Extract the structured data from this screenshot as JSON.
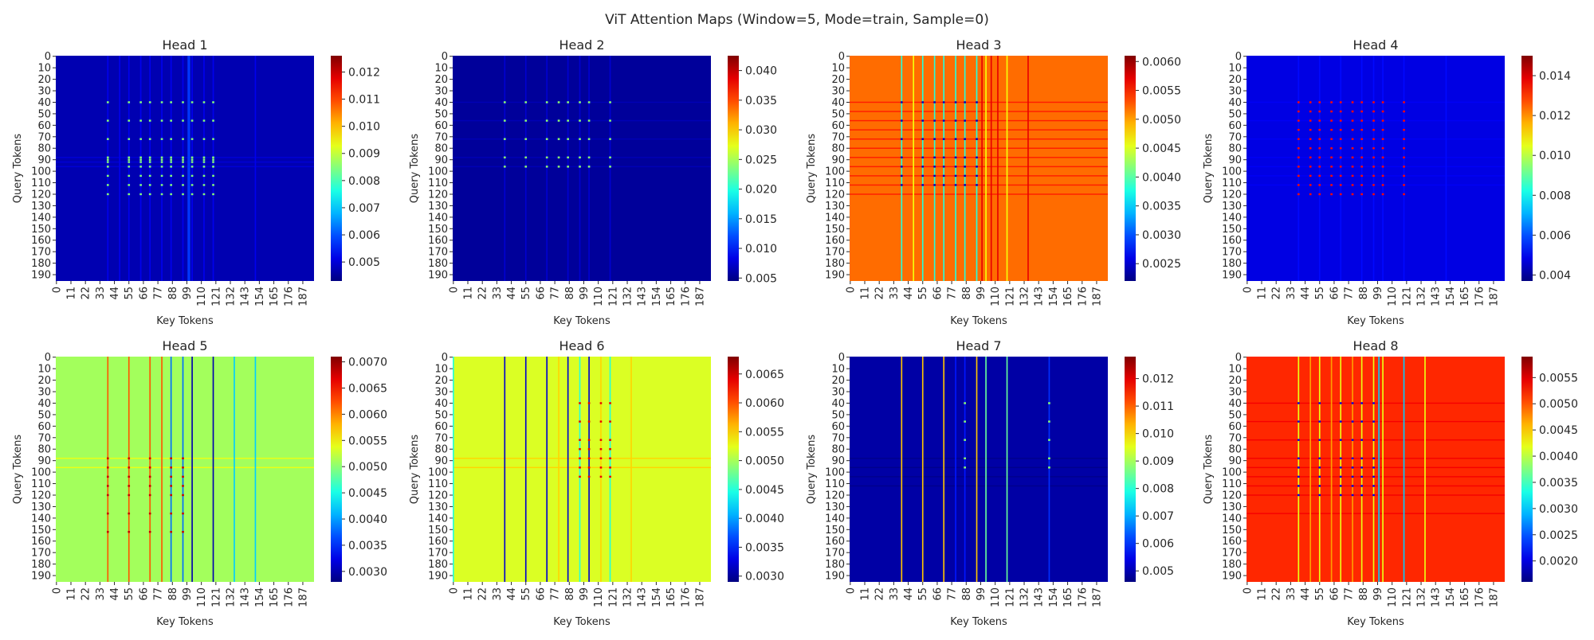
{
  "figure": {
    "suptitle": "ViT Attention Maps (Window=5, Mode=train, Sample=0)"
  },
  "chart_data": [
    {
      "type": "heatmap",
      "title": "Head 1",
      "xlabel": "Key Tokens",
      "ylabel": "Query Tokens",
      "n_tokens": 196,
      "colormap": "jet",
      "xticks": [
        0,
        11,
        22,
        33,
        44,
        55,
        66,
        77,
        88,
        99,
        110,
        121,
        132,
        143,
        154,
        165,
        176,
        187
      ],
      "yticks": [
        0,
        10,
        20,
        30,
        40,
        50,
        60,
        70,
        80,
        90,
        100,
        110,
        120,
        130,
        140,
        150,
        160,
        170,
        180,
        190
      ],
      "vmin": 0.0043,
      "vmax": 0.0126,
      "colorbar_ticks": [
        "0.005",
        "0.006",
        "0.007",
        "0.008",
        "0.009",
        "0.010",
        "0.011",
        "0.012"
      ],
      "background_value": 0.0047,
      "column_bands": [
        {
          "cols": [
            39,
            48,
            55,
            64,
            71,
            80,
            87,
            96,
            103,
            112,
            119
          ],
          "value": 0.0052
        },
        {
          "cols": [
            100,
            101
          ],
          "value": 0.0058
        },
        {
          "cols": [
            151
          ],
          "value": 0.0052
        }
      ],
      "row_bands": [
        {
          "rows": [
            88,
            92,
            96
          ],
          "value": 0.005
        }
      ],
      "hotspots": {
        "rows": [
          40,
          56,
          72,
          88,
          90,
          92,
          96,
          104,
          112,
          120
        ],
        "cols": [
          39,
          55,
          64,
          71,
          80,
          87,
          96,
          103,
          112,
          119
        ],
        "value": 0.0085
      }
    },
    {
      "type": "heatmap",
      "title": "Head 2",
      "xlabel": "Key Tokens",
      "ylabel": "Query Tokens",
      "n_tokens": 196,
      "colormap": "jet",
      "xticks": [
        0,
        11,
        22,
        33,
        44,
        55,
        66,
        77,
        88,
        99,
        110,
        121,
        132,
        143,
        154,
        165,
        176,
        187
      ],
      "yticks": [
        0,
        10,
        20,
        30,
        40,
        50,
        60,
        70,
        80,
        90,
        100,
        110,
        120,
        130,
        140,
        150,
        160,
        170,
        180,
        190
      ],
      "vmin": 0.0045,
      "vmax": 0.0425,
      "colorbar_ticks": [
        "0.005",
        "0.010",
        "0.015",
        "0.020",
        "0.025",
        "0.030",
        "0.035",
        "0.040"
      ],
      "background_value": 0.0055,
      "column_bands": [
        {
          "cols": [
            39,
            55,
            71,
            87,
            96,
            103,
            119
          ],
          "value": 0.0075
        }
      ],
      "row_bands": [
        {
          "rows": [
            40,
            56,
            72,
            88,
            96
          ],
          "value": 0.0065
        }
      ],
      "hotspots": {
        "rows": [
          40,
          56,
          72,
          88,
          96
        ],
        "cols": [
          39,
          55,
          71,
          80,
          87,
          96,
          103,
          119
        ],
        "value": 0.024
      }
    },
    {
      "type": "heatmap",
      "title": "Head 3",
      "xlabel": "Key Tokens",
      "ylabel": "Query Tokens",
      "n_tokens": 196,
      "colormap": "jet",
      "xticks": [
        0,
        11,
        22,
        33,
        44,
        55,
        66,
        77,
        88,
        99,
        110,
        121,
        132,
        143,
        154,
        165,
        176,
        187
      ],
      "yticks": [
        0,
        10,
        20,
        30,
        40,
        50,
        60,
        70,
        80,
        90,
        100,
        110,
        120,
        130,
        140,
        150,
        160,
        170,
        180,
        190
      ],
      "vmin": 0.0022,
      "vmax": 0.0061,
      "colorbar_ticks": [
        "0.0025",
        "0.0030",
        "0.0035",
        "0.0040",
        "0.0045",
        "0.0050",
        "0.0055",
        "0.0060"
      ],
      "background_value": 0.0052,
      "column_bands": [
        {
          "cols": [
            39,
            55,
            64,
            71,
            80,
            87,
            96
          ],
          "value": 0.0038
        },
        {
          "cols": [
            48,
            103,
            119
          ],
          "value": 0.0046
        },
        {
          "cols": [
            100,
            107,
            112,
            135
          ],
          "value": 0.0057
        }
      ],
      "row_bands": [
        {
          "rows": [
            40,
            48,
            56,
            64,
            72,
            80,
            88,
            96,
            104,
            112,
            120
          ],
          "value": 0.0055
        }
      ],
      "hotspots": {
        "rows": [
          40,
          56,
          72,
          88,
          96,
          104,
          112
        ],
        "cols": [
          39,
          55,
          64,
          71,
          80,
          87,
          96
        ],
        "value": 0.0024
      }
    },
    {
      "type": "heatmap",
      "title": "Head 4",
      "xlabel": "Key Tokens",
      "ylabel": "Query Tokens",
      "n_tokens": 196,
      "colormap": "jet",
      "xticks": [
        0,
        11,
        22,
        33,
        44,
        55,
        66,
        77,
        88,
        99,
        110,
        121,
        132,
        143,
        154,
        165,
        176,
        187
      ],
      "yticks": [
        0,
        10,
        20,
        30,
        40,
        50,
        60,
        70,
        80,
        90,
        100,
        110,
        120,
        130,
        140,
        150,
        160,
        170,
        180,
        190
      ],
      "vmin": 0.0037,
      "vmax": 0.015,
      "colorbar_ticks": [
        "0.004",
        "0.006",
        "0.008",
        "0.010",
        "0.012",
        "0.014"
      ],
      "background_value": 0.0048,
      "column_bands": [
        {
          "cols": [
            39,
            55,
            71,
            87,
            96,
            103,
            119,
            151
          ],
          "value": 0.0052
        }
      ],
      "row_bands": [
        {
          "rows": [
            40,
            56,
            72,
            88,
            96,
            104,
            112
          ],
          "value": 0.005
        }
      ],
      "hotspots": {
        "rows": [
          40,
          48,
          56,
          64,
          72,
          80,
          88,
          96,
          104,
          112,
          120
        ],
        "cols": [
          39,
          48,
          55,
          64,
          71,
          80,
          87,
          96,
          103,
          119
        ],
        "value": 0.0135
      }
    },
    {
      "type": "heatmap",
      "title": "Head 5",
      "xlabel": "Key Tokens",
      "ylabel": "Query Tokens",
      "n_tokens": 196,
      "colormap": "jet",
      "xticks": [
        0,
        11,
        22,
        33,
        44,
        55,
        66,
        77,
        88,
        99,
        110,
        121,
        132,
        143,
        154,
        165,
        176,
        187
      ],
      "yticks": [
        0,
        10,
        20,
        30,
        40,
        50,
        60,
        70,
        80,
        90,
        100,
        110,
        120,
        130,
        140,
        150,
        160,
        170,
        180,
        190
      ],
      "vmin": 0.0028,
      "vmax": 0.0071,
      "colorbar_ticks": [
        "0.0030",
        "0.0035",
        "0.0040",
        "0.0045",
        "0.0050",
        "0.0055",
        "0.0060",
        "0.0065",
        "0.0070"
      ],
      "background_value": 0.0051,
      "column_bands": [
        {
          "cols": [
            39,
            55,
            71,
            80
          ],
          "value": 0.0062
        },
        {
          "cols": [
            87,
            96
          ],
          "value": 0.0038
        },
        {
          "cols": [
            103,
            119
          ],
          "value": 0.003
        },
        {
          "cols": [
            135,
            151
          ],
          "value": 0.0042
        }
      ],
      "row_bands": [
        {
          "rows": [
            88,
            96
          ],
          "value": 0.0054
        }
      ],
      "hotspots": {
        "rows": [
          88,
          96,
          104,
          112,
          120,
          136,
          152
        ],
        "cols": [
          39,
          55,
          71,
          87,
          96
        ],
        "value": 0.0068
      }
    },
    {
      "type": "heatmap",
      "title": "Head 6",
      "xlabel": "Key Tokens",
      "ylabel": "Query Tokens",
      "n_tokens": 196,
      "colormap": "jet",
      "xticks": [
        0,
        11,
        22,
        33,
        44,
        55,
        66,
        77,
        88,
        99,
        110,
        121,
        132,
        143,
        154,
        165,
        176,
        187
      ],
      "yticks": [
        0,
        10,
        20,
        30,
        40,
        50,
        60,
        70,
        80,
        90,
        100,
        110,
        120,
        130,
        140,
        150,
        160,
        170,
        180,
        190
      ],
      "vmin": 0.0029,
      "vmax": 0.0068,
      "colorbar_ticks": [
        "0.0030",
        "0.0035",
        "0.0040",
        "0.0045",
        "0.0050",
        "0.0055",
        "0.0060",
        "0.0065"
      ],
      "background_value": 0.0052,
      "column_bands": [
        {
          "cols": [
            39,
            55,
            71,
            87,
            103
          ],
          "value": 0.0032
        },
        {
          "cols": [
            0,
            96,
            119
          ],
          "value": 0.0045
        },
        {
          "cols": [
            80,
            112,
            135
          ],
          "value": 0.0055
        }
      ],
      "row_bands": [
        {
          "rows": [
            88,
            96
          ],
          "value": 0.0055
        }
      ],
      "hotspots": {
        "rows": [
          40,
          56,
          72,
          80,
          88,
          96,
          104
        ],
        "cols": [
          96,
          103,
          112,
          119
        ],
        "value": 0.0064
      }
    },
    {
      "type": "heatmap",
      "title": "Head 7",
      "xlabel": "Key Tokens",
      "ylabel": "Query Tokens",
      "n_tokens": 196,
      "colormap": "jet",
      "xticks": [
        0,
        11,
        22,
        33,
        44,
        55,
        66,
        77,
        88,
        99,
        110,
        121,
        132,
        143,
        154,
        165,
        176,
        187
      ],
      "yticks": [
        0,
        10,
        20,
        30,
        40,
        50,
        60,
        70,
        80,
        90,
        100,
        110,
        120,
        130,
        140,
        150,
        160,
        170,
        180,
        190
      ],
      "vmin": 0.0046,
      "vmax": 0.0128,
      "colorbar_ticks": [
        "0.005",
        "0.006",
        "0.007",
        "0.008",
        "0.009",
        "0.010",
        "0.011",
        "0.012"
      ],
      "background_value": 0.0049,
      "column_bands": [
        {
          "cols": [
            39,
            55,
            71,
            96
          ],
          "value": 0.0102
        },
        {
          "cols": [
            80,
            87
          ],
          "value": 0.0058
        },
        {
          "cols": [
            103,
            119
          ],
          "value": 0.0085
        },
        {
          "cols": [
            151
          ],
          "value": 0.006
        }
      ],
      "row_bands": [
        {
          "rows": [
            88,
            96,
            104,
            112
          ],
          "value": 0.0047
        }
      ],
      "hotspots": {
        "rows": [
          40,
          56,
          72,
          88,
          96
        ],
        "cols": [
          87,
          151
        ],
        "value": 0.0088
      }
    },
    {
      "type": "heatmap",
      "title": "Head 8",
      "xlabel": "Key Tokens",
      "ylabel": "Query Tokens",
      "n_tokens": 196,
      "colormap": "jet",
      "xticks": [
        0,
        11,
        22,
        33,
        44,
        55,
        66,
        77,
        88,
        99,
        110,
        121,
        132,
        143,
        154,
        165,
        176,
        187
      ],
      "yticks": [
        0,
        10,
        20,
        30,
        40,
        50,
        60,
        70,
        80,
        90,
        100,
        110,
        120,
        130,
        140,
        150,
        160,
        170,
        180,
        190
      ],
      "vmin": 0.0016,
      "vmax": 0.0059,
      "colorbar_ticks": [
        "0.0020",
        "0.0025",
        "0.0030",
        "0.0035",
        "0.0040",
        "0.0045",
        "0.0050",
        "0.0055"
      ],
      "background_value": 0.0052,
      "column_bands": [
        {
          "cols": [
            39,
            55,
            71,
            87,
            96,
            103,
            135
          ],
          "value": 0.0042
        },
        {
          "cols": [
            48,
            64,
            80
          ],
          "value": 0.0047
        },
        {
          "cols": [
            100,
            119
          ],
          "value": 0.003
        }
      ],
      "row_bands": [
        {
          "rows": [
            40,
            56,
            72,
            88,
            96,
            104,
            112,
            120,
            136
          ],
          "value": 0.0054
        }
      ],
      "hotspots": {
        "rows": [
          40,
          56,
          72,
          88,
          96,
          104,
          112,
          120
        ],
        "cols": [
          39,
          55,
          71,
          80,
          87,
          96
        ],
        "value": 0.002
      }
    }
  ]
}
